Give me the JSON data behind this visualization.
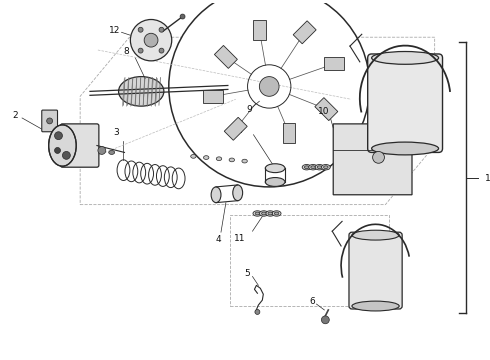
{
  "title": "",
  "background_color": "#ffffff",
  "line_color": "#2a2a2a",
  "label_color": "#111111",
  "fig_width": 4.9,
  "fig_height": 3.6,
  "dpi": 100
}
